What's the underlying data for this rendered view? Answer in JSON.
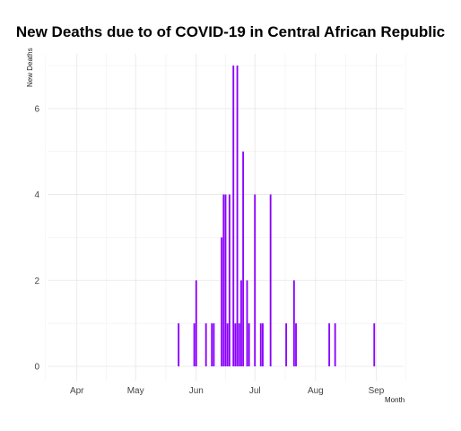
{
  "chart_data": {
    "type": "bar",
    "title": "New Deaths due to of COVID-19 in Central African Republic",
    "xlabel": "Month",
    "ylabel": "New Deaths",
    "bar_color": "#8B00FF",
    "grid": true,
    "x_ticks": [
      {
        "label": "Apr",
        "date": "2020-04-01"
      },
      {
        "label": "May",
        "date": "2020-05-01"
      },
      {
        "label": "Jun",
        "date": "2020-06-01"
      },
      {
        "label": "Jul",
        "date": "2020-07-01"
      },
      {
        "label": "Aug",
        "date": "2020-08-01"
      },
      {
        "label": "Sep",
        "date": "2020-09-01"
      }
    ],
    "y_ticks": [
      0,
      2,
      4,
      6
    ],
    "xlim": [
      "2020-03-17",
      "2020-09-15"
    ],
    "ylim": [
      0,
      7
    ],
    "series": [
      {
        "dates": [
          "2020-05-23",
          "2020-05-31",
          "2020-06-01",
          "2020-06-06",
          "2020-06-09",
          "2020-06-10",
          "2020-06-14",
          "2020-06-15",
          "2020-06-16",
          "2020-06-17",
          "2020-06-18",
          "2020-06-20",
          "2020-06-21",
          "2020-06-22",
          "2020-06-23",
          "2020-06-24",
          "2020-06-25",
          "2020-06-27",
          "2020-06-28",
          "2020-07-01",
          "2020-07-04",
          "2020-07-05",
          "2020-07-09",
          "2020-07-17",
          "2020-07-21",
          "2020-07-22",
          "2020-08-08",
          "2020-08-11",
          "2020-08-31"
        ],
        "values": [
          1,
          1,
          2,
          1,
          1,
          1,
          3,
          4,
          4,
          1,
          4,
          7,
          1,
          7,
          1,
          2,
          5,
          2,
          1,
          4,
          1,
          1,
          4,
          1,
          2,
          1,
          1,
          1,
          1
        ]
      }
    ]
  }
}
